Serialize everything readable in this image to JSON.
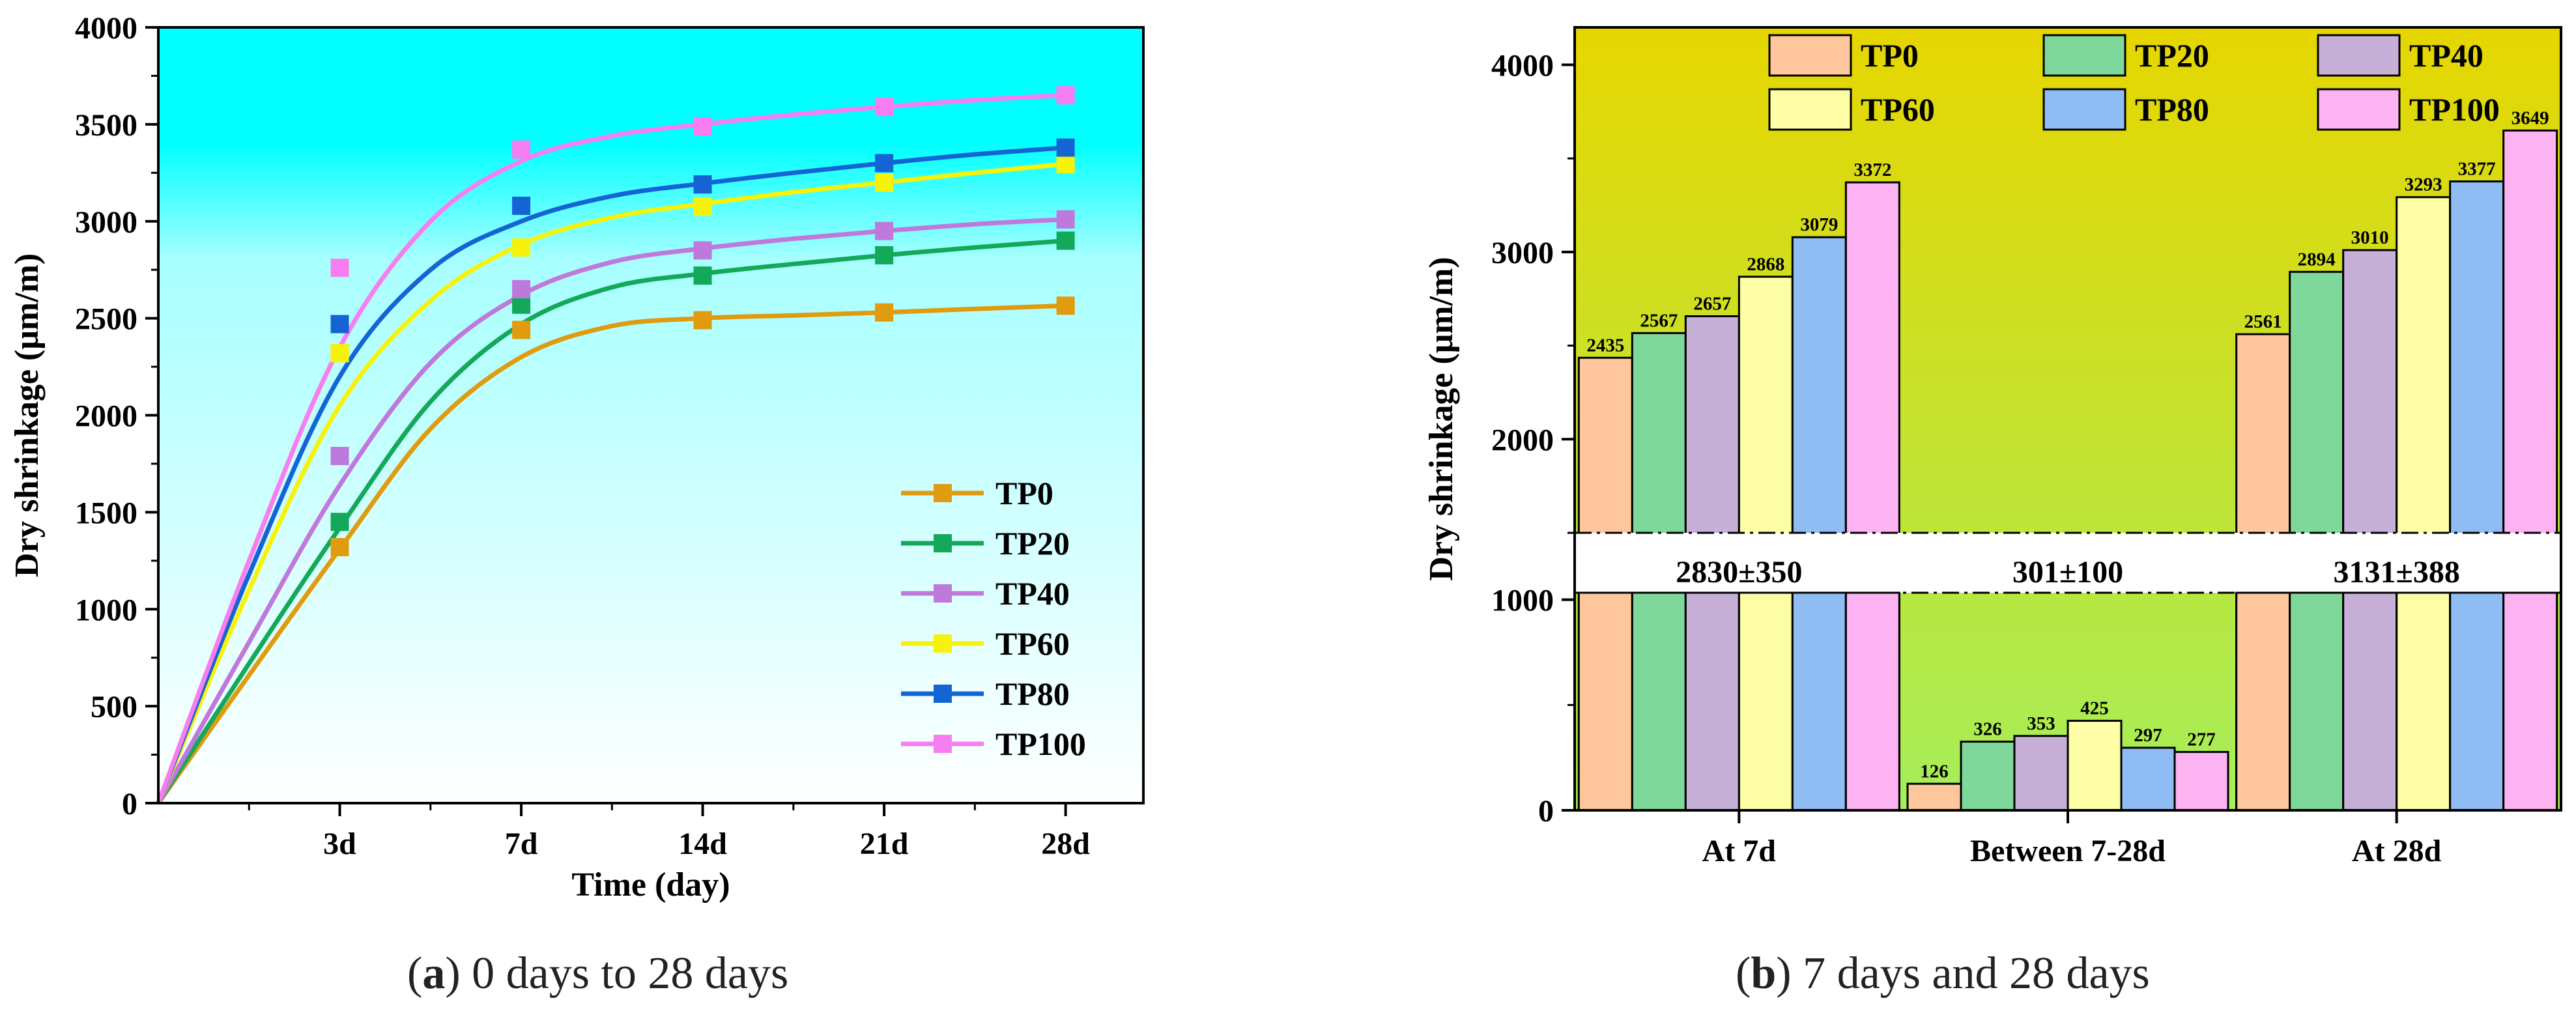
{
  "chart_data": [
    {
      "type": "line",
      "panel": "a",
      "ylabel": "Dry shrinkage (μm/m)",
      "xlabel": "Time (day)",
      "caption_letter": "a",
      "caption_text": "0 days to 28 days",
      "ylim": [
        0,
        4000
      ],
      "xlim": [
        0,
        38
      ],
      "yticks": [
        0,
        500,
        1000,
        1500,
        2000,
        2500,
        3000,
        3500,
        4000
      ],
      "xticks": [
        {
          "x": 7,
          "label": "3d"
        },
        {
          "x": 14,
          "label": "7d"
        },
        {
          "x": 21,
          "label": "14d"
        },
        {
          "x": 28,
          "label": "21d"
        },
        {
          "x": 35,
          "label": "28d"
        }
      ],
      "x_minor": [
        3.5,
        10.5,
        17.5,
        24.5,
        31.5
      ],
      "legend_position": "bottom-right",
      "grid": false,
      "background": {
        "top": "#00ffff",
        "bottom": "#ffffff"
      },
      "series": [
        {
          "name": "TP0",
          "color": "#e09b0e",
          "points": [
            [
              0,
              0
            ],
            [
              7,
              1320
            ],
            [
              14,
              2440
            ],
            [
              21,
              2490
            ],
            [
              28,
              2530
            ],
            [
              35,
              2565
            ]
          ],
          "fit": [
            [
              0,
              0
            ],
            [
              3.5,
              660
            ],
            [
              7,
              1310
            ],
            [
              10.5,
              1930
            ],
            [
              14,
              2300
            ],
            [
              17.5,
              2460
            ],
            [
              21,
              2500
            ],
            [
              24.5,
              2515
            ],
            [
              28,
              2530
            ],
            [
              31.5,
              2548
            ],
            [
              35,
              2565
            ]
          ]
        },
        {
          "name": "TP20",
          "color": "#13a85a",
          "points": [
            [
              0,
              0
            ],
            [
              7,
              1450
            ],
            [
              14,
              2570
            ],
            [
              21,
              2720
            ],
            [
              28,
              2825
            ],
            [
              35,
              2900
            ]
          ],
          "fit": [
            [
              0,
              0
            ],
            [
              3.5,
              720
            ],
            [
              7,
              1420
            ],
            [
              10.5,
              2070
            ],
            [
              14,
              2470
            ],
            [
              17.5,
              2660
            ],
            [
              21,
              2730
            ],
            [
              24.5,
              2780
            ],
            [
              28,
              2825
            ],
            [
              31.5,
              2865
            ],
            [
              35,
              2900
            ]
          ]
        },
        {
          "name": "TP40",
          "color": "#bf78dc",
          "points": [
            [
              0,
              0
            ],
            [
              7,
              1790
            ],
            [
              14,
              2650
            ],
            [
              21,
              2850
            ],
            [
              28,
              2950
            ],
            [
              35,
              3010
            ]
          ],
          "fit": [
            [
              0,
              0
            ],
            [
              3.5,
              830
            ],
            [
              7,
              1640
            ],
            [
              10.5,
              2270
            ],
            [
              14,
              2620
            ],
            [
              17.5,
              2790
            ],
            [
              21,
              2860
            ],
            [
              24.5,
              2910
            ],
            [
              28,
              2950
            ],
            [
              31.5,
              2985
            ],
            [
              35,
              3010
            ]
          ]
        },
        {
          "name": "TP60",
          "color": "#f6f20a",
          "points": [
            [
              0,
              0
            ],
            [
              7,
              2320
            ],
            [
              14,
              2865
            ],
            [
              21,
              3075
            ],
            [
              28,
              3200
            ],
            [
              35,
              3295
            ]
          ],
          "fit": [
            [
              0,
              0
            ],
            [
              3.5,
              1100
            ],
            [
              7,
              2050
            ],
            [
              10.5,
              2590
            ],
            [
              14,
              2880
            ],
            [
              17.5,
              3020
            ],
            [
              21,
              3090
            ],
            [
              24.5,
              3150
            ],
            [
              28,
              3200
            ],
            [
              31.5,
              3250
            ],
            [
              35,
              3295
            ]
          ]
        },
        {
          "name": "TP80",
          "color": "#1464d4",
          "points": [
            [
              0,
              0
            ],
            [
              7,
              2470
            ],
            [
              14,
              3080
            ],
            [
              21,
              3190
            ],
            [
              28,
              3300
            ],
            [
              35,
              3380
            ]
          ],
          "fit": [
            [
              0,
              0
            ],
            [
              3.5,
              1180
            ],
            [
              7,
              2200
            ],
            [
              10.5,
              2750
            ],
            [
              14,
              3000
            ],
            [
              17.5,
              3130
            ],
            [
              21,
              3195
            ],
            [
              24.5,
              3250
            ],
            [
              28,
              3300
            ],
            [
              31.5,
              3345
            ],
            [
              35,
              3380
            ]
          ]
        },
        {
          "name": "TP100",
          "color": "#f77ef0",
          "points": [
            [
              0,
              0
            ],
            [
              7,
              2760
            ],
            [
              14,
              3370
            ],
            [
              21,
              3490
            ],
            [
              28,
              3590
            ],
            [
              35,
              3650
            ]
          ],
          "fit": [
            [
              0,
              0
            ],
            [
              3.5,
              1250
            ],
            [
              7,
              2350
            ],
            [
              10.5,
              3000
            ],
            [
              14,
              3310
            ],
            [
              17.5,
              3440
            ],
            [
              21,
              3500
            ],
            [
              24.5,
              3550
            ],
            [
              28,
              3590
            ],
            [
              31.5,
              3625
            ],
            [
              35,
              3650
            ]
          ]
        }
      ]
    },
    {
      "type": "bar",
      "panel": "b",
      "ylabel": "Dry shrinkage (μm/m)",
      "caption_letter": "b",
      "caption_text": "7 days and 28 days",
      "categories": [
        "At 7d",
        "Between 7-28d",
        "At 28d"
      ],
      "ylim": [
        0,
        4200
      ],
      "yticks": [
        0,
        1000,
        2000,
        3000,
        4000
      ],
      "axis_break": {
        "from": 1200,
        "to": 1500
      },
      "break_labels": [
        "2830±350",
        "301±100",
        "3131±388"
      ],
      "legend_position": "top",
      "grid": false,
      "background": {
        "top": "#e6d600",
        "bottom": "#a6ee5a"
      },
      "series": [
        {
          "name": "TP0",
          "color": "#fdc69c",
          "values": [
            2435,
            126,
            2561
          ]
        },
        {
          "name": "TP20",
          "color": "#7ed89a",
          "values": [
            2567,
            326,
            2894
          ]
        },
        {
          "name": "TP40",
          "color": "#c7b0d8",
          "values": [
            2657,
            353,
            3010
          ]
        },
        {
          "name": "TP60",
          "color": "#fdfea6",
          "values": [
            2868,
            425,
            3293
          ]
        },
        {
          "name": "TP80",
          "color": "#8fbcf2",
          "values": [
            3079,
            297,
            3377
          ]
        },
        {
          "name": "TP100",
          "color": "#fdb2f2",
          "values": [
            3372,
            277,
            3649
          ]
        }
      ]
    }
  ]
}
